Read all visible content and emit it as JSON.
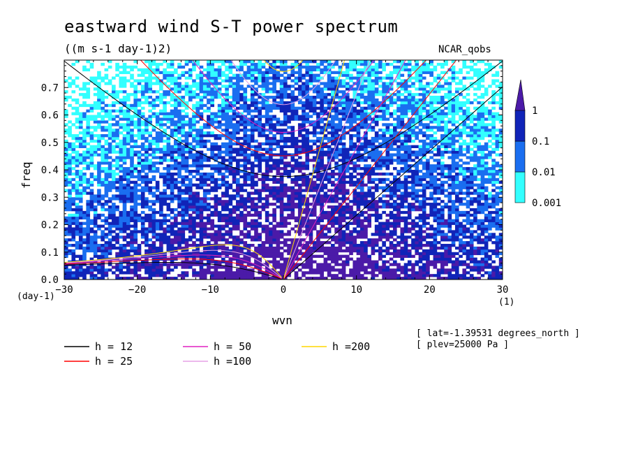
{
  "chart_data": {
    "type": "heatmap",
    "title": "eastward wind S-T power spectrum",
    "subtitle": "((m s-1 day-1)2)",
    "source_label": "NCAR_qobs",
    "xlabel": "wvn",
    "ylabel": "freq",
    "x_units_left": "(day-1)",
    "x_units_right": "(1)",
    "xlim": [
      -30,
      30
    ],
    "ylim": [
      0,
      0.8
    ],
    "xticks": [
      -30,
      -20,
      -10,
      0,
      10,
      20,
      30
    ],
    "yticks": [
      0.0,
      0.1,
      0.2,
      0.3,
      0.4,
      0.5,
      0.6,
      0.7
    ],
    "ytick_labels": [
      "0.0",
      "0.1",
      "0.2",
      "0.3",
      "0.4",
      "0.5",
      "0.6",
      "0.7"
    ],
    "colorbar": {
      "levels": [
        0.001,
        0.01,
        0.1,
        1
      ],
      "labels": [
        "0.001",
        "0.01",
        "0.1",
        "1"
      ],
      "colors": [
        "#33ffff",
        "#1a6ef0",
        "#1024b8",
        "#4b1aa8"
      ]
    },
    "dispersion_curves": [
      {
        "label": "h = 12",
        "h": 12,
        "color": "#000000"
      },
      {
        "label": "h = 25",
        "h": 25,
        "color": "#ff0000"
      },
      {
        "label": "h = 50",
        "h": 50,
        "color": "#e020c0"
      },
      {
        "label": "h =100",
        "h": 100,
        "color": "#e6a0e6"
      },
      {
        "label": "h =200",
        "h": 200,
        "color": "#ffd700"
      }
    ],
    "annotations": [
      "[ lat=-1.39531 degrees_north ]",
      "[ plev=25000 Pa ]"
    ]
  }
}
